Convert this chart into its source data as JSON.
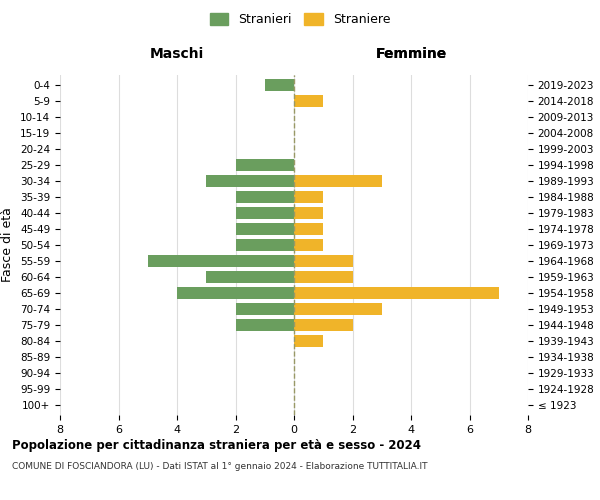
{
  "age_groups": [
    "100+",
    "95-99",
    "90-94",
    "85-89",
    "80-84",
    "75-79",
    "70-74",
    "65-69",
    "60-64",
    "55-59",
    "50-54",
    "45-49",
    "40-44",
    "35-39",
    "30-34",
    "25-29",
    "20-24",
    "15-19",
    "10-14",
    "5-9",
    "0-4"
  ],
  "birth_years": [
    "≤ 1923",
    "1924-1928",
    "1929-1933",
    "1934-1938",
    "1939-1943",
    "1944-1948",
    "1949-1953",
    "1954-1958",
    "1959-1963",
    "1964-1968",
    "1969-1973",
    "1974-1978",
    "1979-1983",
    "1984-1988",
    "1989-1993",
    "1994-1998",
    "1999-2003",
    "2004-2008",
    "2009-2013",
    "2014-2018",
    "2019-2023"
  ],
  "maschi": [
    0,
    0,
    0,
    0,
    0,
    2,
    2,
    4,
    3,
    5,
    2,
    2,
    2,
    2,
    3,
    2,
    0,
    0,
    0,
    0,
    1
  ],
  "femmine": [
    0,
    0,
    0,
    0,
    1,
    2,
    3,
    7,
    2,
    2,
    1,
    1,
    1,
    1,
    3,
    0,
    0,
    0,
    0,
    1,
    0
  ],
  "maschi_color": "#6a9e5e",
  "femmine_color": "#f0b429",
  "title": "Popolazione per cittadinanza straniera per età e sesso - 2024",
  "subtitle": "COMUNE DI FOSCIANDORA (LU) - Dati ISTAT al 1° gennaio 2024 - Elaborazione TUTTITALIA.IT",
  "legend_maschi": "Stranieri",
  "legend_femmine": "Straniere",
  "xlabel_left": "Maschi",
  "xlabel_right": "Femmine",
  "ylabel_left": "Fasce di età",
  "xlim": 8,
  "background_color": "#ffffff",
  "grid_color": "#dddddd",
  "bar_height": 0.75
}
